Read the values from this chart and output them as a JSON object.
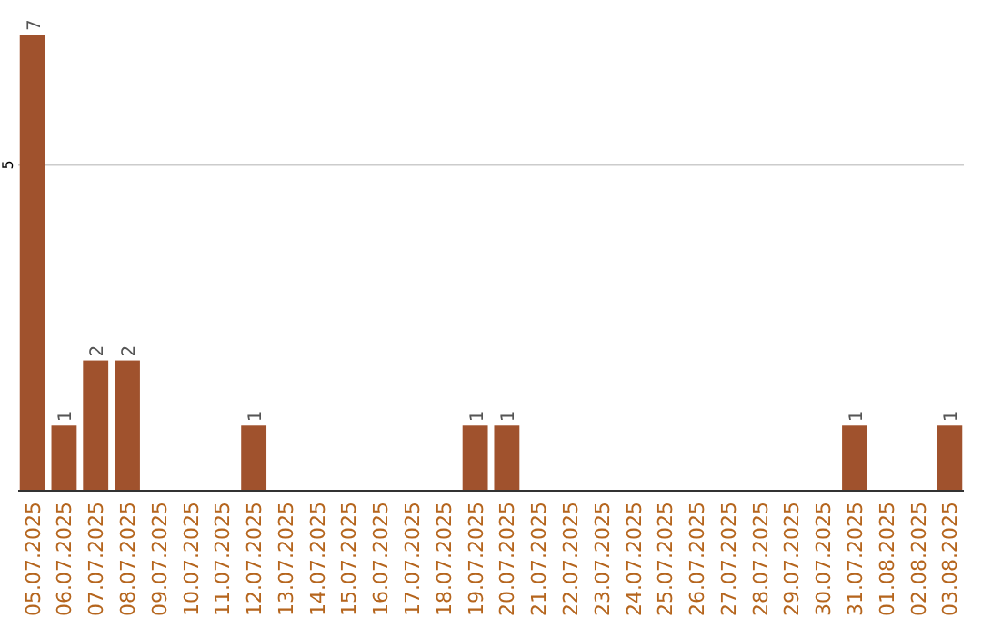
{
  "chart_data": {
    "type": "bar",
    "categories": [
      "05.07.2025",
      "06.07.2025",
      "07.07.2025",
      "08.07.2025",
      "09.07.2025",
      "10.07.2025",
      "11.07.2025",
      "12.07.2025",
      "13.07.2025",
      "14.07.2025",
      "15.07.2025",
      "16.07.2025",
      "17.07.2025",
      "18.07.2025",
      "19.07.2025",
      "20.07.2025",
      "21.07.2025",
      "22.07.2025",
      "23.07.2025",
      "24.07.2025",
      "25.07.2025",
      "26.07.2025",
      "27.07.2025",
      "28.07.2025",
      "29.07.2025",
      "30.07.2025",
      "31.07.2025",
      "01.08.2025",
      "02.08.2025",
      "03.08.2025"
    ],
    "values": [
      7,
      1,
      2,
      2,
      0,
      0,
      0,
      1,
      0,
      0,
      0,
      0,
      0,
      0,
      1,
      1,
      0,
      0,
      0,
      0,
      0,
      0,
      0,
      0,
      0,
      0,
      1,
      0,
      0,
      1
    ],
    "value_labels": [
      "7",
      "1",
      "2",
      "2",
      null,
      null,
      null,
      "1",
      null,
      null,
      null,
      null,
      null,
      null,
      "1",
      "1",
      null,
      null,
      null,
      null,
      null,
      null,
      null,
      null,
      null,
      null,
      "1",
      null,
      null,
      "1"
    ],
    "color": "#a0522d",
    "ylim": [
      0,
      7
    ],
    "yticks": [
      5
    ],
    "grid": "y"
  }
}
